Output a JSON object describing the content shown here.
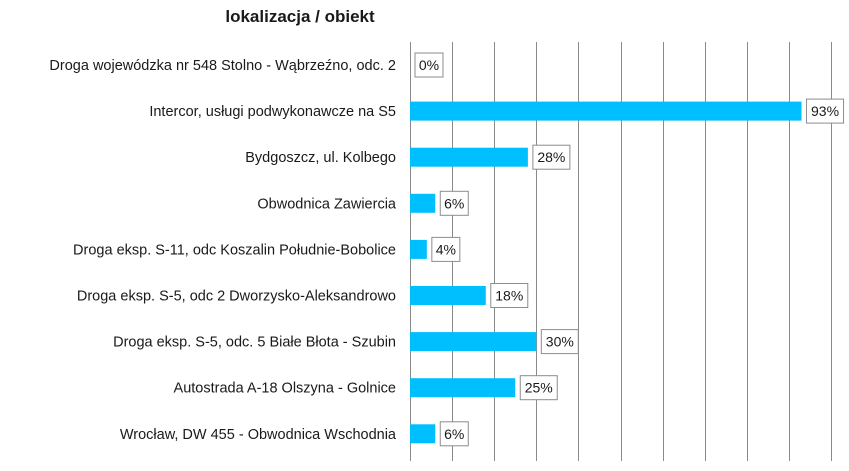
{
  "chart_data": {
    "type": "bar",
    "orientation": "horizontal",
    "title": "lokalizacja / obiekt",
    "categories": [
      "Droga wojewódzka nr 548 Stolno - Wąbrzeźno, odc. 2",
      "Intercor, usługi podwykonawcze na S5",
      "Bydgoszcz, ul. Kolbego",
      "Obwodnica Zawiercia",
      "Droga eksp. S-11, odc Koszalin Południe-Bobolice",
      "Droga eksp. S-5, odc 2 Dworzysko-Aleksandrowo",
      "Droga eksp. S-5, odc. 5 Białe Błota - Szubin",
      "Autostrada A-18 Olszyna - Golnice",
      "Wrocław, DW 455 - Obwodnica Wschodnia"
    ],
    "values": [
      0,
      93,
      28,
      6,
      4,
      18,
      30,
      25,
      6
    ],
    "value_labels": [
      "0%",
      "93%",
      "28%",
      "6%",
      "4%",
      "18%",
      "30%",
      "25%",
      "6%"
    ],
    "xlim": [
      0,
      100
    ],
    "x_grid_step": 10,
    "grid": true,
    "legend": "none",
    "bar_color": "#00bfff"
  }
}
